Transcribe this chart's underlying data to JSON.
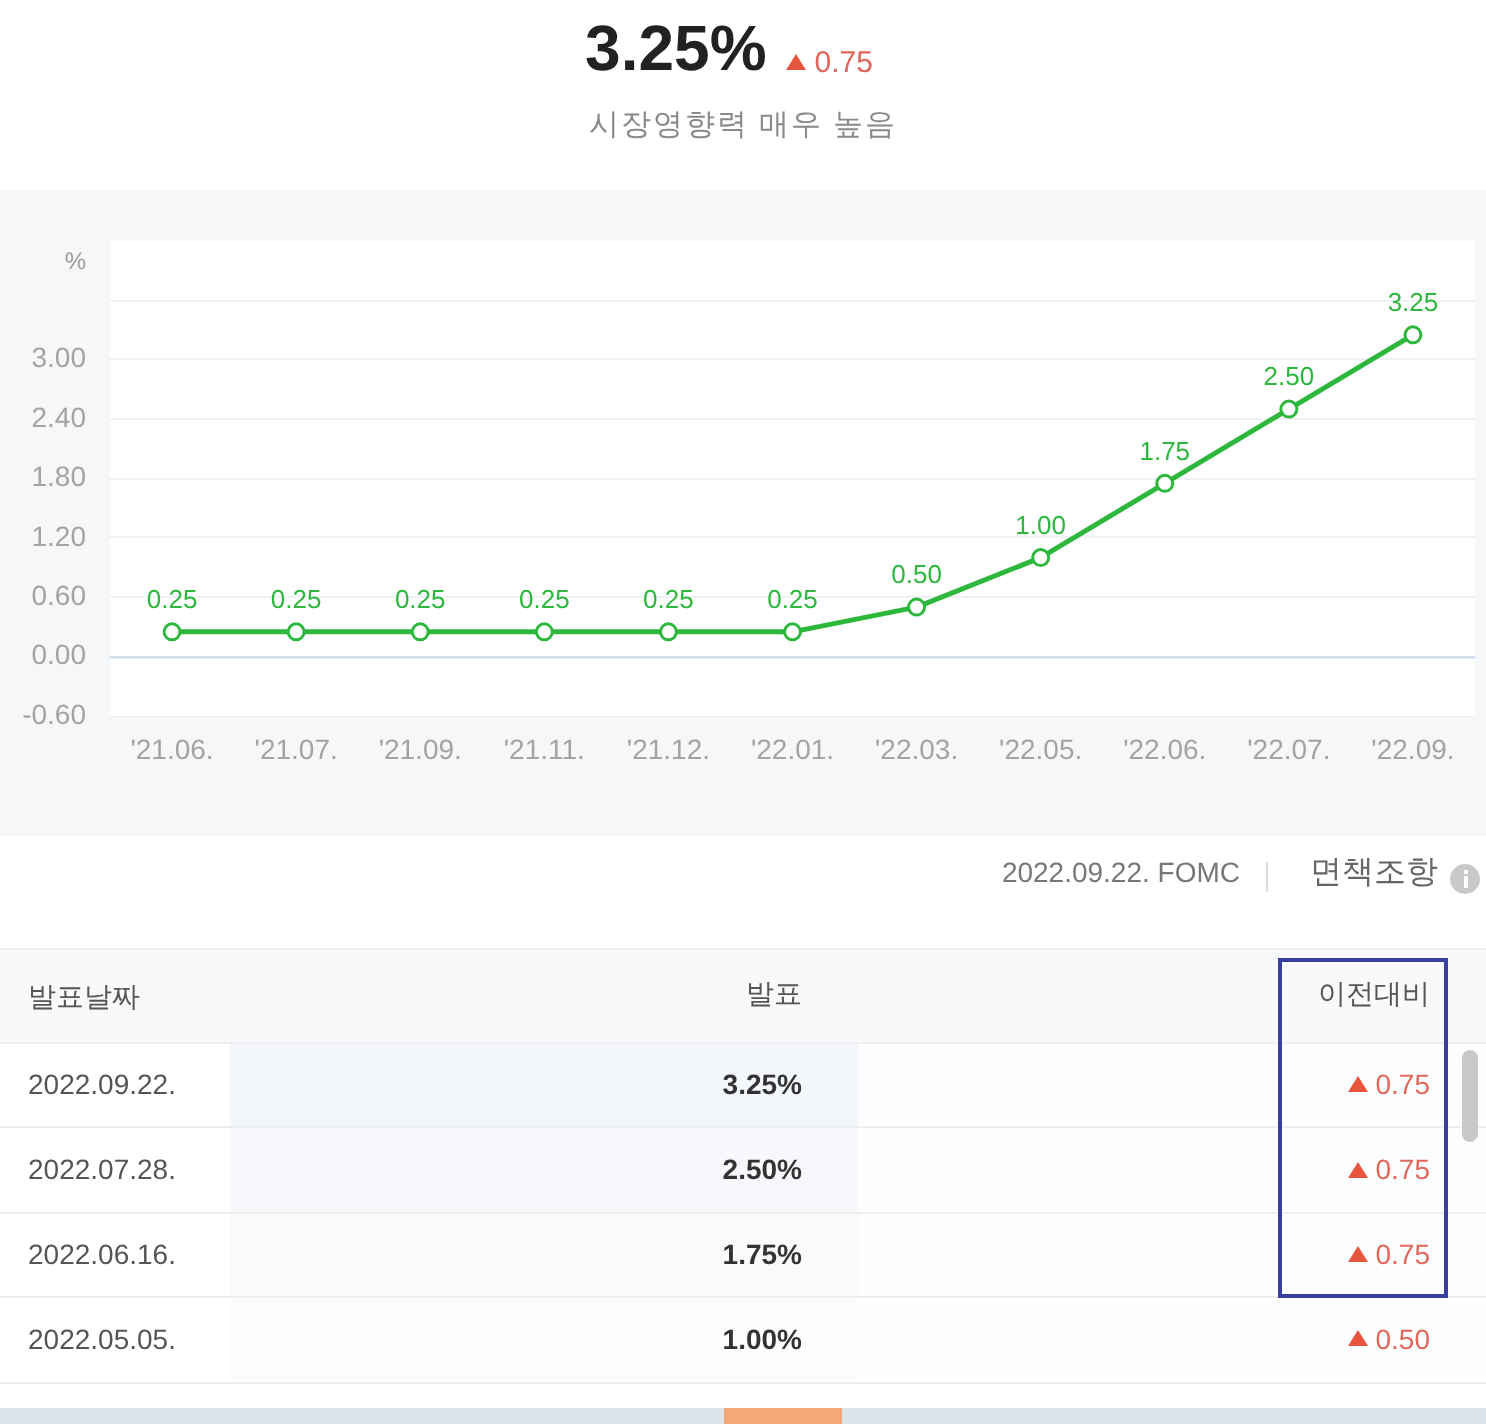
{
  "chart_data": [
    {
      "type": "other",
      "title": "3.25%",
      "subtitle": "시장영향력 매우 높음",
      "annotations": [
        "0.75"
      ]
    },
    {
      "type": "line",
      "ylabel": "%",
      "categories": [
        "'21.06.",
        "'21.07.",
        "'21.09.",
        "'21.11.",
        "'21.12.",
        "'22.01.",
        "'22.03.",
        "'22.05.",
        "'22.06.",
        "'22.07.",
        "'22.09."
      ],
      "series": [
        {
          "color": "#2db83d",
          "values": [
            0.25,
            0.25,
            0.25,
            0.25,
            0.25,
            0.25,
            0.5,
            1,
            1.75,
            2.5,
            3.25
          ],
          "value_labels": [
            "0.25",
            "0.25",
            "0.25",
            "0.25",
            "0.25",
            "0.25",
            "0.50",
            "1.00",
            "1.75",
            "2.50",
            "3.25"
          ]
        }
      ],
      "ylim": [
        -0.6,
        4.2
      ],
      "yticks": [
        {
          "value": -0.6,
          "label": "-0.60"
        },
        {
          "value": 0,
          "label": "0.00"
        },
        {
          "value": 0.6,
          "label": "0.60"
        },
        {
          "value": 1.2,
          "label": "1.20"
        },
        {
          "value": 1.8,
          "label": "1.80"
        },
        {
          "value": 2.4,
          "label": "2.40"
        },
        {
          "value": 3,
          "label": "3.00"
        },
        {
          "value": 3.6,
          "label": null
        }
      ],
      "grid": "y",
      "marker": "circle",
      "line_style": "solid",
      "ref_lines": [
        {
          "axis": "y",
          "value": 0,
          "color": "#c9d9f0"
        }
      ],
      "annotations": [
        "2022.09.22. FOMC",
        "면책조항"
      ]
    },
    {
      "type": "heatmap",
      "ylabel": "발표날짜",
      "categories": [
        "발표",
        "이전대비"
      ],
      "y_categories": [
        "2022.09.22.",
        "2022.07.28.",
        "2022.06.16.",
        "2022.05.05."
      ],
      "cells": [
        [
          3.25,
          0.75
        ],
        [
          2.5,
          0.75
        ],
        [
          1.75,
          0.75
        ],
        [
          1,
          0.5
        ]
      ],
      "cell_labels": [
        [
          "3.25%",
          "0.75"
        ],
        [
          "2.50%",
          "0.75"
        ],
        [
          "1.75%",
          "0.75"
        ],
        [
          "1.00%",
          "0.50"
        ]
      ]
    }
  ]
}
